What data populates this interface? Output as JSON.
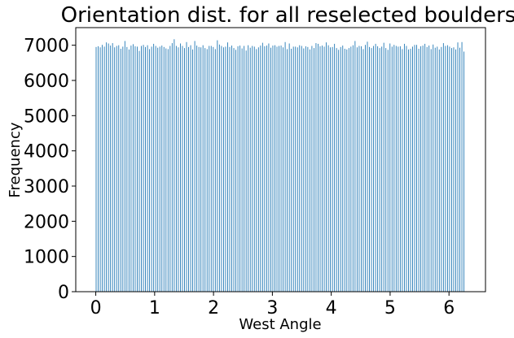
{
  "chart_data": {
    "type": "bar",
    "title": "Orientation dist. for all reselected boulders",
    "xlabel": "West Angle",
    "ylabel": "Frequency",
    "xlim": [
      -0.34,
      6.62
    ],
    "ylim": [
      0,
      7500
    ],
    "xticks": [
      0,
      1,
      2,
      3,
      4,
      5,
      6
    ],
    "yticks": [
      0,
      1000,
      2000,
      3000,
      4000,
      5000,
      6000,
      7000
    ],
    "grid": false,
    "bar_color": "#1f77b4",
    "bin_range": [
      0,
      6.2832
    ],
    "bin_count": 180,
    "bar_fill_fraction": 0.35,
    "values": [
      6950,
      6970,
      6940,
      7010,
      6960,
      7080,
      7050,
      6990,
      7060,
      6940,
      6980,
      7000,
      6900,
      6960,
      7120,
      6950,
      6880,
      6990,
      7030,
      6970,
      6960,
      6840,
      6980,
      7010,
      6950,
      7000,
      6890,
      6960,
      7040,
      6980,
      6930,
      6960,
      6990,
      6950,
      6910,
      6890,
      6980,
      7060,
      7170,
      6980,
      6940,
      7050,
      6980,
      6920,
      7090,
      6950,
      7000,
      6880,
      7120,
      6990,
      6950,
      6940,
      7000,
      6920,
      6890,
      6980,
      6980,
      6950,
      6890,
      7140,
      7020,
      6980,
      6940,
      6960,
      7080,
      6950,
      6990,
      6920,
      6870,
      6970,
      6990,
      6910,
      6980,
      6850,
      7000,
      6930,
      6980,
      6960,
      6890,
      6940,
      6990,
      7070,
      6970,
      6990,
      7050,
      6930,
      6990,
      7000,
      6960,
      6980,
      6990,
      6940,
      7090,
      6890,
      7050,
      6900,
      6960,
      6960,
      6940,
      7000,
      6980,
      6910,
      6970,
      6950,
      6880,
      6980,
      6920,
      7060,
      7040,
      6970,
      6990,
      6960,
      7080,
      7000,
      6940,
      6950,
      7040,
      6920,
      6870,
      6950,
      6990,
      6900,
      6880,
      6920,
      6960,
      7000,
      7120,
      6940,
      6980,
      6970,
      6890,
      7010,
      7100,
      6950,
      6920,
      6980,
      7040,
      6970,
      6920,
      6960,
      7070,
      6920,
      6870,
      7050,
      6960,
      7010,
      6980,
      6960,
      6970,
      6890,
      7040,
      6980,
      6880,
      6900,
      6960,
      7010,
      7010,
      6900,
      6970,
      6990,
      7040,
      6950,
      6990,
      6890,
      7020,
      6930,
      6960,
      6880,
      6950,
      7060,
      6980,
      7000,
      6960,
      6920,
      6940,
      6880,
      7080,
      6930,
      7090,
      6820
    ]
  }
}
